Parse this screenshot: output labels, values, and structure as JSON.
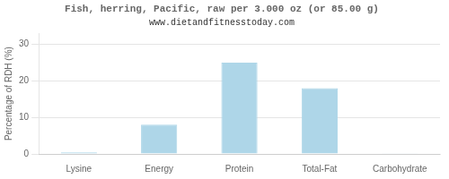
{
  "chart_data": {
    "type": "bar",
    "title": "Fish, herring, Pacific, raw per 3.000 oz (or 85.00 g)",
    "subtitle": "www.dietandfitnesstoday.com",
    "categories": [
      "Lysine",
      "Energy",
      "Protein",
      "Total-Fat",
      "Carbohydrate"
    ],
    "values": [
      0.4,
      8.0,
      25.0,
      18.0,
      0.2
    ],
    "color": "#aed6e8",
    "ylabel": "Percentage of RDH (%)",
    "ylim": [
      0,
      33
    ],
    "yticks": [
      0,
      10,
      20,
      30
    ],
    "grid": true
  }
}
